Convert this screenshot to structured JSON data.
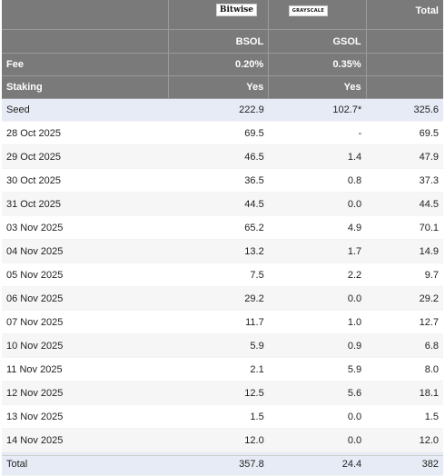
{
  "header": {
    "brand_bitwise": "Bitwise",
    "brand_grayscale": "GRAYSCALE",
    "total_label": "Total",
    "col_bsol": "BSOL",
    "col_gsol": "GSOL"
  },
  "fee": {
    "label": "Fee",
    "bsol": "0.20%",
    "gsol": "0.35%"
  },
  "staking": {
    "label": "Staking",
    "bsol": "Yes",
    "gsol": "Yes"
  },
  "rows": [
    {
      "date": "Seed",
      "bsol": "222.9",
      "gsol": "102.7*",
      "total": "325.6"
    },
    {
      "date": "28 Oct 2025",
      "bsol": "69.5",
      "gsol": "-",
      "total": "69.5"
    },
    {
      "date": "29 Oct 2025",
      "bsol": "46.5",
      "gsol": "1.4",
      "total": "47.9"
    },
    {
      "date": "30 Oct 2025",
      "bsol": "36.5",
      "gsol": "0.8",
      "total": "37.3"
    },
    {
      "date": "31 Oct 2025",
      "bsol": "44.5",
      "gsol": "0.0",
      "total": "44.5"
    },
    {
      "date": "03 Nov 2025",
      "bsol": "65.2",
      "gsol": "4.9",
      "total": "70.1"
    },
    {
      "date": "04 Nov 2025",
      "bsol": "13.2",
      "gsol": "1.7",
      "total": "14.9"
    },
    {
      "date": "05 Nov 2025",
      "bsol": "7.5",
      "gsol": "2.2",
      "total": "9.7"
    },
    {
      "date": "06 Nov 2025",
      "bsol": "29.2",
      "gsol": "0.0",
      "total": "29.2"
    },
    {
      "date": "07 Nov 2025",
      "bsol": "11.7",
      "gsol": "1.0",
      "total": "12.7"
    },
    {
      "date": "10 Nov 2025",
      "bsol": "5.9",
      "gsol": "0.9",
      "total": "6.8"
    },
    {
      "date": "11 Nov 2025",
      "bsol": "2.1",
      "gsol": "5.9",
      "total": "8.0"
    },
    {
      "date": "12 Nov 2025",
      "bsol": "12.5",
      "gsol": "5.6",
      "total": "18.1"
    },
    {
      "date": "13 Nov 2025",
      "bsol": "1.5",
      "gsol": "0.0",
      "total": "1.5"
    },
    {
      "date": "14 Nov 2025",
      "bsol": "12.0",
      "gsol": "0.0",
      "total": "12.0"
    }
  ],
  "total_row": {
    "label": "Total",
    "bsol": "357.8",
    "gsol": "24.4",
    "total": "382"
  }
}
